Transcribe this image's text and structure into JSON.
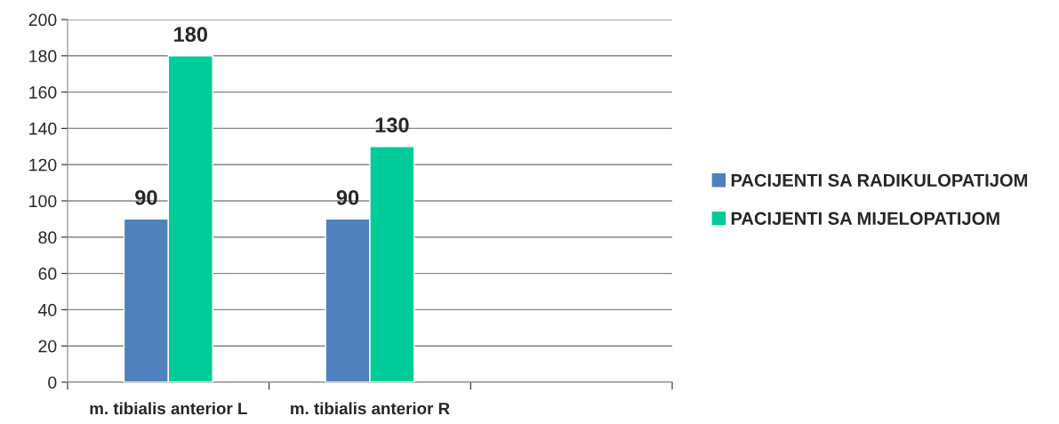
{
  "chart_data": {
    "type": "bar",
    "categories": [
      "m. tibialis anterior L",
      "m. tibialis anterior R",
      null
    ],
    "series": [
      {
        "name": "PACIJENTI SA RADIKULOPATIJOM",
        "color": "#4f81bd",
        "values": [
          90,
          90,
          null
        ]
      },
      {
        "name": "PACIJENTI SA MIJELOPATIJOM",
        "color": "#00cc99",
        "values": [
          180,
          130,
          null
        ]
      }
    ],
    "ylim": [
      0,
      200
    ],
    "yticks": [
      0,
      20,
      40,
      60,
      80,
      100,
      120,
      140,
      160,
      180,
      200
    ],
    "grid": "y",
    "legend": "right",
    "data_labels": true
  }
}
